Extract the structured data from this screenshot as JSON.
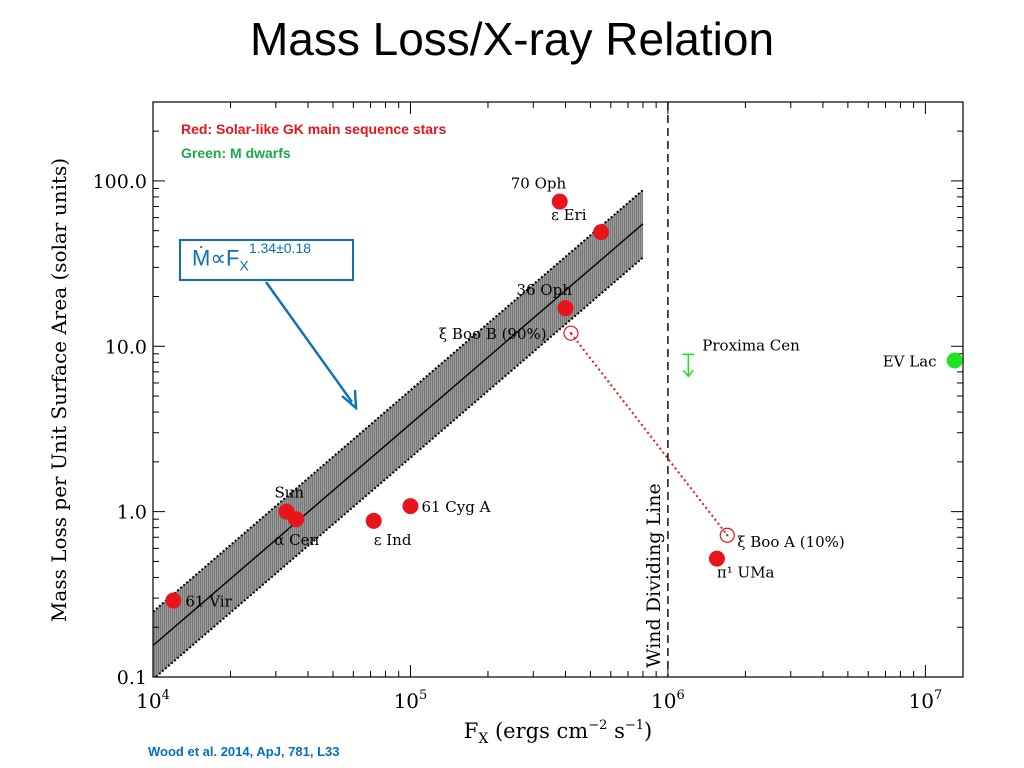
{
  "title": "Mass Loss/X-ray Relation",
  "citation": "Wood et al. 2014, ApJ, 781, L33",
  "legend": {
    "red": "Red:  Solar-like GK main sequence stars",
    "green": "Green:  M dwarfs",
    "red_color": "#e8141c",
    "green_color": "#21e421"
  },
  "formula": {
    "mdot": "Ṁ",
    "prop": "∝",
    "f": "F",
    "sub": "X",
    "exp": "1.34±0.18"
  },
  "chart_data": {
    "type": "scatter",
    "title": "",
    "xlabel": "F_X (ergs cm^-2 s^-1)",
    "xlabel_parts": {
      "main": "F",
      "sub": "X",
      "units_a": "(ergs cm",
      "exp1": "−2",
      "units_b": " s",
      "exp2": "−1",
      "close": ")"
    },
    "ylabel": "Mass Loss per Unit Surface Area (solar units)",
    "xscale": "log",
    "yscale": "log",
    "xlim": [
      10000,
      14000000
    ],
    "ylim": [
      0.1,
      300
    ],
    "xticks": [
      {
        "value": 10000,
        "base": "10",
        "exp": "4"
      },
      {
        "value": 100000,
        "base": "10",
        "exp": "5"
      },
      {
        "value": 1000000,
        "base": "10",
        "exp": "6"
      },
      {
        "value": 10000000,
        "base": "10",
        "exp": "7"
      }
    ],
    "yticks": [
      {
        "value": 0.1,
        "label": "0.1"
      },
      {
        "value": 1.0,
        "label": "1.0"
      },
      {
        "value": 10.0,
        "label": "10.0"
      },
      {
        "value": 100.0,
        "label": "100.0"
      }
    ],
    "fit": {
      "exponent": 1.34,
      "x_range": [
        10000,
        800000
      ],
      "y_at_10000": 0.155,
      "band_factor": 1.6
    },
    "wind_dividing_line": {
      "x": 1000000,
      "label": "Wind Dividing Line"
    },
    "points": [
      {
        "name": "61 Vir",
        "x": 12000,
        "y": 0.29,
        "color": "#e8141c",
        "filled": true
      },
      {
        "name": "Sun",
        "x": 33000,
        "y": 1.0,
        "color": "#e8141c",
        "filled": true
      },
      {
        "name": "α Cen",
        "x": 36000,
        "y": 0.9,
        "color": "#e8141c",
        "filled": true
      },
      {
        "name": "ε Ind",
        "x": 72000,
        "y": 0.88,
        "color": "#e8141c",
        "filled": true
      },
      {
        "name": "61 Cyg A",
        "x": 100000,
        "y": 1.08,
        "color": "#e8141c",
        "filled": true
      },
      {
        "name": "70 Oph",
        "x": 380000,
        "y": 75,
        "color": "#e8141c",
        "filled": true
      },
      {
        "name": "ε Eri",
        "x": 550000,
        "y": 49,
        "color": "#e8141c",
        "filled": true
      },
      {
        "name": "36 Oph",
        "x": 400000,
        "y": 17,
        "color": "#e8141c",
        "filled": true
      },
      {
        "name": "ξ Boo B (90%)",
        "x": 420000,
        "y": 12,
        "color": "#e8141c",
        "filled": false
      },
      {
        "name": "ξ Boo A (10%)",
        "x": 1700000,
        "y": 0.72,
        "color": "#e8141c",
        "filled": false
      },
      {
        "name": "π¹ UMa",
        "x": 1550000,
        "y": 0.52,
        "color": "#e8141c",
        "filled": true
      },
      {
        "name": "EV Lac",
        "x": 13000000,
        "y": 8.2,
        "color": "#21e421",
        "filled": true
      },
      {
        "name": "Proxima Cen",
        "x": 1200000,
        "y": 8.0,
        "color": "#21e421",
        "upper_limit": true
      }
    ],
    "connector": {
      "from": "ξ Boo B (90%)",
      "to": "ξ Boo A (10%)",
      "color": "#e8141c",
      "style": "dotted"
    },
    "grid": false
  }
}
